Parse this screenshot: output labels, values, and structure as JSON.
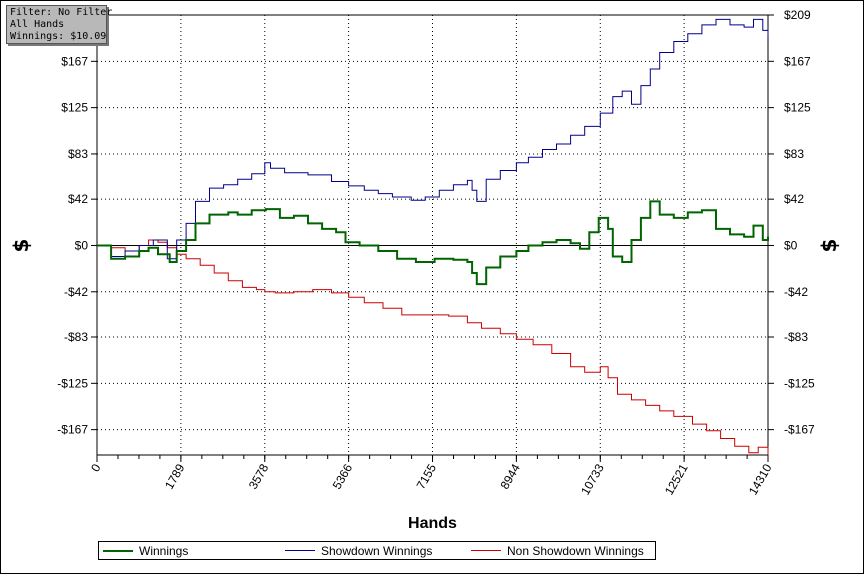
{
  "info_box": {
    "filter": "Filter: No Filter",
    "hands": "All Hands",
    "winnings": "Winnings: $10.09"
  },
  "legend": {
    "items": [
      {
        "label": "Winnings",
        "color": "#006400"
      },
      {
        "label": "Showdown Winnings",
        "color": "#00008b"
      },
      {
        "label": "Non Showdown Winnings",
        "color": "#cc0000"
      }
    ]
  },
  "chart_data": {
    "type": "line",
    "xlabel": "Hands",
    "ylabel_left": "$",
    "ylabel_right": "$",
    "xlim": [
      0,
      14310
    ],
    "ylim": [
      -190,
      209
    ],
    "x_ticks": [
      0,
      1789,
      3578,
      5366,
      7155,
      8944,
      10733,
      12521,
      14310
    ],
    "x_tick_labels": [
      "0",
      "1789",
      "3578",
      "5366",
      "7155",
      "8944",
      "10733",
      "12521",
      "14310"
    ],
    "y_ticks": [
      209,
      167,
      125,
      83,
      42,
      0,
      -42,
      -83,
      -125,
      -167
    ],
    "y_tick_labels": [
      "$209",
      "$167",
      "$125",
      "$83",
      "$42",
      "$0",
      "-$42",
      "-$83",
      "-$125",
      "-$167"
    ],
    "y_tick_labels_left": [
      "",
      "$167",
      "$125",
      "$83",
      "$42",
      "$0",
      "-$42",
      "-$83",
      "-$125",
      "-$167"
    ],
    "grid": true,
    "zero_line": true,
    "legend_position": "bottom",
    "series": [
      {
        "name": "Winnings",
        "color": "#006400",
        "points": [
          [
            0,
            0
          ],
          [
            300,
            -12
          ],
          [
            600,
            -10
          ],
          [
            900,
            -5
          ],
          [
            1100,
            -2
          ],
          [
            1300,
            -8
          ],
          [
            1550,
            -15
          ],
          [
            1700,
            -5
          ],
          [
            1900,
            5
          ],
          [
            2100,
            20
          ],
          [
            2400,
            28
          ],
          [
            2800,
            30
          ],
          [
            3000,
            28
          ],
          [
            3300,
            32
          ],
          [
            3600,
            33
          ],
          [
            3900,
            25
          ],
          [
            4200,
            27
          ],
          [
            4500,
            20
          ],
          [
            4800,
            15
          ],
          [
            5100,
            12
          ],
          [
            5300,
            3
          ],
          [
            5600,
            0
          ],
          [
            6000,
            -5
          ],
          [
            6400,
            -12
          ],
          [
            6800,
            -15
          ],
          [
            7200,
            -12
          ],
          [
            7600,
            -13
          ],
          [
            7900,
            -15
          ],
          [
            8000,
            -25
          ],
          [
            8100,
            -35
          ],
          [
            8300,
            -20
          ],
          [
            8600,
            -10
          ],
          [
            8944,
            -5
          ],
          [
            9200,
            0
          ],
          [
            9500,
            3
          ],
          [
            9800,
            5
          ],
          [
            10100,
            2
          ],
          [
            10300,
            -3
          ],
          [
            10500,
            12
          ],
          [
            10700,
            25
          ],
          [
            10900,
            15
          ],
          [
            11000,
            -10
          ],
          [
            11200,
            -15
          ],
          [
            11400,
            5
          ],
          [
            11600,
            25
          ],
          [
            11800,
            40
          ],
          [
            12000,
            28
          ],
          [
            12300,
            25
          ],
          [
            12600,
            30
          ],
          [
            12900,
            32
          ],
          [
            13200,
            15
          ],
          [
            13500,
            10
          ],
          [
            13800,
            8
          ],
          [
            14000,
            18
          ],
          [
            14200,
            5
          ],
          [
            14310,
            8
          ]
        ]
      },
      {
        "name": "Showdown Winnings",
        "color": "#00008b",
        "points": [
          [
            0,
            0
          ],
          [
            300,
            -10
          ],
          [
            600,
            -5
          ],
          [
            900,
            0
          ],
          [
            1200,
            5
          ],
          [
            1500,
            -12
          ],
          [
            1700,
            5
          ],
          [
            1900,
            20
          ],
          [
            2100,
            40
          ],
          [
            2400,
            52
          ],
          [
            2700,
            55
          ],
          [
            3000,
            60
          ],
          [
            3300,
            65
          ],
          [
            3578,
            75
          ],
          [
            3700,
            70
          ],
          [
            4000,
            66
          ],
          [
            4500,
            64
          ],
          [
            5000,
            58
          ],
          [
            5366,
            54
          ],
          [
            5700,
            50
          ],
          [
            6000,
            47
          ],
          [
            6300,
            44
          ],
          [
            6700,
            41
          ],
          [
            7000,
            44
          ],
          [
            7300,
            50
          ],
          [
            7600,
            55
          ],
          [
            7900,
            59
          ],
          [
            8000,
            50
          ],
          [
            8100,
            40
          ],
          [
            8300,
            60
          ],
          [
            8600,
            68
          ],
          [
            8944,
            75
          ],
          [
            9200,
            80
          ],
          [
            9500,
            87
          ],
          [
            9800,
            92
          ],
          [
            10100,
            100
          ],
          [
            10400,
            108
          ],
          [
            10733,
            120
          ],
          [
            11000,
            135
          ],
          [
            11200,
            140
          ],
          [
            11400,
            128
          ],
          [
            11600,
            145
          ],
          [
            11800,
            160
          ],
          [
            12000,
            175
          ],
          [
            12300,
            185
          ],
          [
            12600,
            192
          ],
          [
            12900,
            200
          ],
          [
            13200,
            205
          ],
          [
            13500,
            200
          ],
          [
            13800,
            198
          ],
          [
            14000,
            205
          ],
          [
            14200,
            195
          ],
          [
            14310,
            190
          ]
        ]
      },
      {
        "name": "Non Showdown Winnings",
        "color": "#cc0000",
        "points": [
          [
            0,
            0
          ],
          [
            300,
            -2
          ],
          [
            600,
            -5
          ],
          [
            900,
            0
          ],
          [
            1100,
            5
          ],
          [
            1300,
            3
          ],
          [
            1500,
            -2
          ],
          [
            1700,
            -8
          ],
          [
            1900,
            -12
          ],
          [
            2200,
            -18
          ],
          [
            2500,
            -25
          ],
          [
            2800,
            -32
          ],
          [
            3100,
            -38
          ],
          [
            3400,
            -40
          ],
          [
            3578,
            -42
          ],
          [
            3800,
            -43
          ],
          [
            4200,
            -42
          ],
          [
            4600,
            -40
          ],
          [
            5000,
            -43
          ],
          [
            5366,
            -47
          ],
          [
            5700,
            -52
          ],
          [
            6100,
            -57
          ],
          [
            6500,
            -63
          ],
          [
            6900,
            -63
          ],
          [
            7155,
            -63
          ],
          [
            7500,
            -64
          ],
          [
            7900,
            -70
          ],
          [
            8200,
            -75
          ],
          [
            8600,
            -80
          ],
          [
            8944,
            -85
          ],
          [
            9300,
            -90
          ],
          [
            9700,
            -98
          ],
          [
            10100,
            -110
          ],
          [
            10400,
            -115
          ],
          [
            10733,
            -110
          ],
          [
            10900,
            -120
          ],
          [
            11100,
            -135
          ],
          [
            11400,
            -140
          ],
          [
            11700,
            -145
          ],
          [
            12000,
            -150
          ],
          [
            12300,
            -155
          ],
          [
            12700,
            -162
          ],
          [
            13000,
            -168
          ],
          [
            13300,
            -175
          ],
          [
            13600,
            -182
          ],
          [
            13900,
            -188
          ],
          [
            14100,
            -183
          ],
          [
            14310,
            -190
          ]
        ]
      }
    ]
  }
}
